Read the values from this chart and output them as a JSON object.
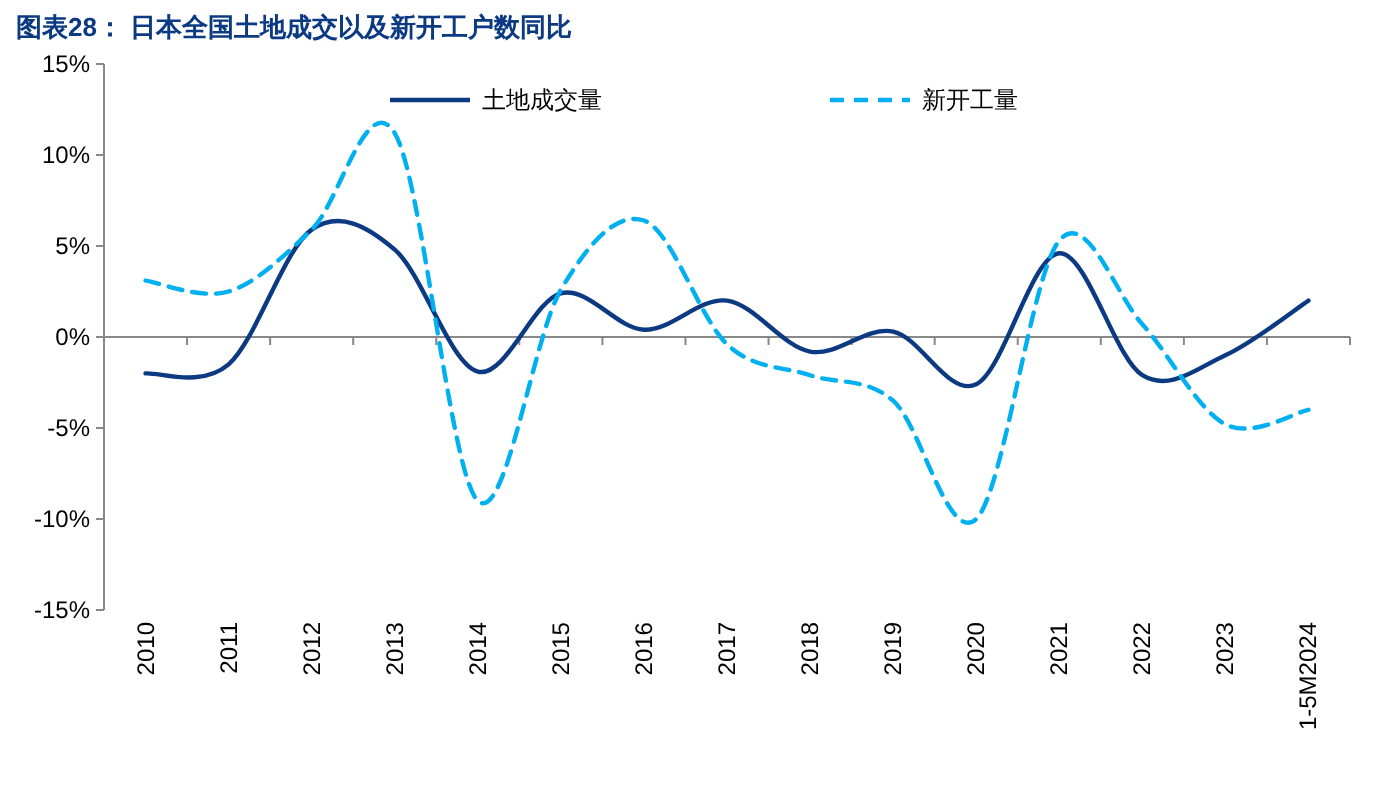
{
  "chart_data": {
    "type": "line",
    "title": "图表28：  日本全国土地成交以及新开工户数同比",
    "categories": [
      "2010",
      "2011",
      "2012",
      "2013",
      "2014",
      "2015",
      "2016",
      "2017",
      "2018",
      "2019",
      "2020",
      "2021",
      "2022",
      "2023",
      "1-5M2024"
    ],
    "series": [
      {
        "name": "土地成交量",
        "color": "#0b3a82",
        "line_style": "solid",
        "values": [
          -2.0,
          -1.5,
          5.9,
          4.8,
          -1.9,
          2.4,
          0.4,
          2.0,
          -0.8,
          0.3,
          -2.6,
          4.6,
          -2.1,
          -1.0,
          2.0
        ]
      },
      {
        "name": "新开工量",
        "color": "#00b0f0",
        "line_style": "dashed",
        "values": [
          3.1,
          2.5,
          5.9,
          11.2,
          -9.0,
          2.6,
          6.4,
          -0.4,
          -2.1,
          -3.5,
          -10.0,
          5.3,
          0.7,
          -4.8,
          -4.0
        ]
      }
    ],
    "ylim": [
      -15,
      15
    ],
    "yticks": [
      {
        "value": -15,
        "label": "-15%"
      },
      {
        "value": -10,
        "label": "-10%"
      },
      {
        "value": -5,
        "label": "-5%"
      },
      {
        "value": 0,
        "label": "0%"
      },
      {
        "value": 5,
        "label": "5%"
      },
      {
        "value": 10,
        "label": "10%"
      },
      {
        "value": 15,
        "label": "15%"
      }
    ],
    "legend": "top",
    "marker": "none"
  }
}
